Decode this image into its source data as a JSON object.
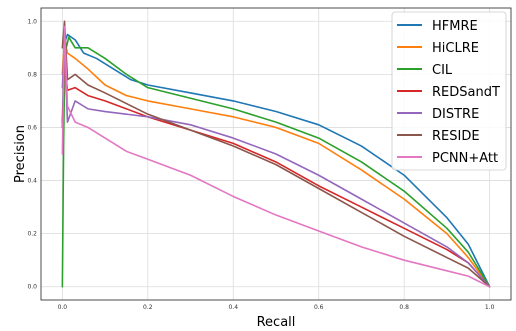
{
  "chart_data": {
    "type": "line",
    "xlabel": "Recall",
    "ylabel": "Precision",
    "xlim": [
      -0.05,
      1.05
    ],
    "ylim": [
      -0.05,
      1.05
    ],
    "grid": true,
    "legend_position": "top-right",
    "x_ticks": [
      {
        "value": 0.0,
        "label": "0.0"
      },
      {
        "value": 0.2,
        "label": "0.2"
      },
      {
        "value": 0.4,
        "label": "0.4"
      },
      {
        "value": 0.6,
        "label": "0.6"
      },
      {
        "value": 0.8,
        "label": "0.8"
      },
      {
        "value": 1.0,
        "label": "1.0"
      }
    ],
    "y_ticks": [
      {
        "value": 0.0,
        "label": "0.0"
      },
      {
        "value": 0.2,
        "label": "0.2"
      },
      {
        "value": 0.4,
        "label": "0.4"
      },
      {
        "value": 0.6,
        "label": "0.6"
      },
      {
        "value": 0.8,
        "label": "0.8"
      },
      {
        "value": 1.0,
        "label": "1.0"
      }
    ],
    "series": [
      {
        "name": "HFMRE",
        "color": "#1f77b4",
        "points": [
          [
            0.0,
            0.62
          ],
          [
            0.005,
            0.92
          ],
          [
            0.012,
            0.95
          ],
          [
            0.03,
            0.93
          ],
          [
            0.05,
            0.88
          ],
          [
            0.08,
            0.86
          ],
          [
            0.12,
            0.82
          ],
          [
            0.16,
            0.78
          ],
          [
            0.2,
            0.76
          ],
          [
            0.3,
            0.73
          ],
          [
            0.4,
            0.7
          ],
          [
            0.5,
            0.66
          ],
          [
            0.6,
            0.61
          ],
          [
            0.7,
            0.53
          ],
          [
            0.8,
            0.42
          ],
          [
            0.9,
            0.26
          ],
          [
            0.95,
            0.16
          ],
          [
            1.0,
            0.0
          ]
        ]
      },
      {
        "name": "HiCLRE",
        "color": "#ff7f0e",
        "points": [
          [
            0.0,
            0.8
          ],
          [
            0.005,
            0.93
          ],
          [
            0.012,
            0.88
          ],
          [
            0.03,
            0.86
          ],
          [
            0.06,
            0.82
          ],
          [
            0.1,
            0.76
          ],
          [
            0.15,
            0.72
          ],
          [
            0.2,
            0.7
          ],
          [
            0.3,
            0.67
          ],
          [
            0.4,
            0.64
          ],
          [
            0.5,
            0.6
          ],
          [
            0.6,
            0.54
          ],
          [
            0.7,
            0.44
          ],
          [
            0.8,
            0.33
          ],
          [
            0.9,
            0.2
          ],
          [
            0.95,
            0.11
          ],
          [
            1.0,
            0.0
          ]
        ]
      },
      {
        "name": "CIL",
        "color": "#2ca02c",
        "points": [
          [
            0.0,
            0.0
          ],
          [
            0.003,
            0.55
          ],
          [
            0.006,
            0.88
          ],
          [
            0.015,
            0.94
          ],
          [
            0.03,
            0.9
          ],
          [
            0.06,
            0.9
          ],
          [
            0.1,
            0.86
          ],
          [
            0.15,
            0.8
          ],
          [
            0.2,
            0.75
          ],
          [
            0.3,
            0.71
          ],
          [
            0.4,
            0.67
          ],
          [
            0.5,
            0.62
          ],
          [
            0.6,
            0.56
          ],
          [
            0.7,
            0.47
          ],
          [
            0.8,
            0.36
          ],
          [
            0.9,
            0.22
          ],
          [
            0.95,
            0.13
          ],
          [
            1.0,
            0.0
          ]
        ]
      },
      {
        "name": "REDSandT",
        "color": "#d62728",
        "points": [
          [
            0.0,
            0.6
          ],
          [
            0.005,
            0.85
          ],
          [
            0.012,
            0.74
          ],
          [
            0.03,
            0.75
          ],
          [
            0.06,
            0.72
          ],
          [
            0.1,
            0.7
          ],
          [
            0.15,
            0.67
          ],
          [
            0.2,
            0.64
          ],
          [
            0.3,
            0.59
          ],
          [
            0.4,
            0.54
          ],
          [
            0.5,
            0.47
          ],
          [
            0.6,
            0.38
          ],
          [
            0.7,
            0.3
          ],
          [
            0.8,
            0.22
          ],
          [
            0.9,
            0.14
          ],
          [
            0.95,
            0.09
          ],
          [
            1.0,
            0.0
          ]
        ]
      },
      {
        "name": "DISTRE",
        "color": "#9467bd",
        "points": [
          [
            0.0,
            0.75
          ],
          [
            0.005,
            0.92
          ],
          [
            0.012,
            0.62
          ],
          [
            0.03,
            0.7
          ],
          [
            0.06,
            0.67
          ],
          [
            0.1,
            0.66
          ],
          [
            0.15,
            0.65
          ],
          [
            0.2,
            0.64
          ],
          [
            0.3,
            0.61
          ],
          [
            0.4,
            0.56
          ],
          [
            0.5,
            0.5
          ],
          [
            0.6,
            0.42
          ],
          [
            0.7,
            0.33
          ],
          [
            0.8,
            0.24
          ],
          [
            0.9,
            0.15
          ],
          [
            0.95,
            0.09
          ],
          [
            1.0,
            0.0
          ]
        ]
      },
      {
        "name": "RESIDE",
        "color": "#8c564b",
        "points": [
          [
            0.0,
            0.9
          ],
          [
            0.005,
            1.0
          ],
          [
            0.012,
            0.78
          ],
          [
            0.03,
            0.8
          ],
          [
            0.06,
            0.76
          ],
          [
            0.1,
            0.73
          ],
          [
            0.15,
            0.69
          ],
          [
            0.2,
            0.65
          ],
          [
            0.3,
            0.59
          ],
          [
            0.4,
            0.53
          ],
          [
            0.5,
            0.46
          ],
          [
            0.6,
            0.37
          ],
          [
            0.7,
            0.28
          ],
          [
            0.8,
            0.19
          ],
          [
            0.9,
            0.11
          ],
          [
            0.95,
            0.07
          ],
          [
            1.0,
            0.0
          ]
        ]
      },
      {
        "name": "PCNN+Att",
        "color": "#e377c2",
        "points": [
          [
            0.0,
            0.5
          ],
          [
            0.005,
            0.98
          ],
          [
            0.012,
            0.68
          ],
          [
            0.03,
            0.62
          ],
          [
            0.06,
            0.6
          ],
          [
            0.1,
            0.56
          ],
          [
            0.15,
            0.51
          ],
          [
            0.2,
            0.48
          ],
          [
            0.3,
            0.42
          ],
          [
            0.4,
            0.34
          ],
          [
            0.5,
            0.27
          ],
          [
            0.6,
            0.21
          ],
          [
            0.7,
            0.15
          ],
          [
            0.8,
            0.1
          ],
          [
            0.9,
            0.06
          ],
          [
            0.95,
            0.04
          ],
          [
            1.0,
            0.0
          ]
        ]
      }
    ]
  }
}
